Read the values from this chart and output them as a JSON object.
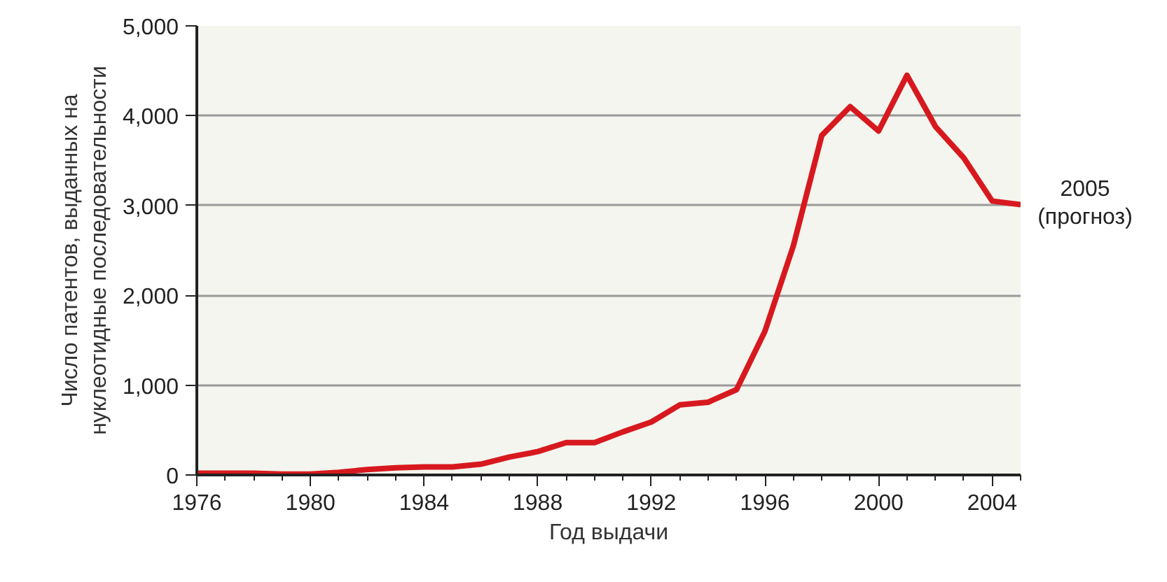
{
  "chart_data": {
    "type": "line",
    "xlabel": "Год выдачи",
    "ylabel": "Число патентов, выданных на\nнуклеотидные последовательности",
    "x": [
      1976,
      1977,
      1978,
      1979,
      1980,
      1981,
      1982,
      1983,
      1984,
      1985,
      1986,
      1987,
      1988,
      1989,
      1990,
      1991,
      1992,
      1993,
      1994,
      1995,
      1996,
      1997,
      1998,
      1999,
      2000,
      2001,
      2002,
      2003,
      2004,
      2005
    ],
    "series": [
      {
        "color": "#d7191f",
        "values": [
          20,
          20,
          20,
          10,
          10,
          30,
          60,
          80,
          90,
          90,
          120,
          200,
          260,
          360,
          360,
          480,
          590,
          780,
          810,
          950,
          1600,
          2550,
          3780,
          4100,
          3830,
          4450,
          3880,
          3530,
          3050,
          3010
        ]
      }
    ],
    "xlim": [
      1976,
      2005
    ],
    "xticks": [
      1976,
      {
        "value": 1977,
        "label": null
      },
      {
        "value": 1978,
        "label": null
      },
      {
        "value": 1979,
        "label": null
      },
      1980,
      {
        "value": 1981,
        "label": null
      },
      {
        "value": 1982,
        "label": null
      },
      {
        "value": 1983,
        "label": null
      },
      1984,
      {
        "value": 1985,
        "label": null
      },
      {
        "value": 1986,
        "label": null
      },
      {
        "value": 1987,
        "label": null
      },
      1988,
      {
        "value": 1989,
        "label": null
      },
      {
        "value": 1990,
        "label": null
      },
      {
        "value": 1991,
        "label": null
      },
      1992,
      {
        "value": 1993,
        "label": null
      },
      {
        "value": 1994,
        "label": null
      },
      {
        "value": 1995,
        "label": null
      },
      1996,
      {
        "value": 1997,
        "label": null
      },
      {
        "value": 1998,
        "label": null
      },
      {
        "value": 1999,
        "label": null
      },
      2000,
      {
        "value": 2001,
        "label": null
      },
      {
        "value": 2002,
        "label": null
      },
      {
        "value": 2003,
        "label": null
      },
      2004,
      {
        "value": 2005,
        "label": null
      }
    ],
    "ylim": [
      0,
      5000
    ],
    "yticks": [
      {
        "value": 0,
        "label": "0"
      },
      {
        "value": 1000,
        "label": "1,000"
      },
      {
        "value": 2000,
        "label": "2,000"
      },
      {
        "value": 3000,
        "label": "3,000"
      },
      {
        "value": 4000,
        "label": "4,000"
      },
      {
        "value": 5000,
        "label": "5,000"
      }
    ],
    "grid": "y",
    "marker": "none",
    "line_style": "solid",
    "annotations": [
      {
        "text": "2005\n(прогноз)",
        "x": 2005,
        "y": 3010
      }
    ]
  }
}
